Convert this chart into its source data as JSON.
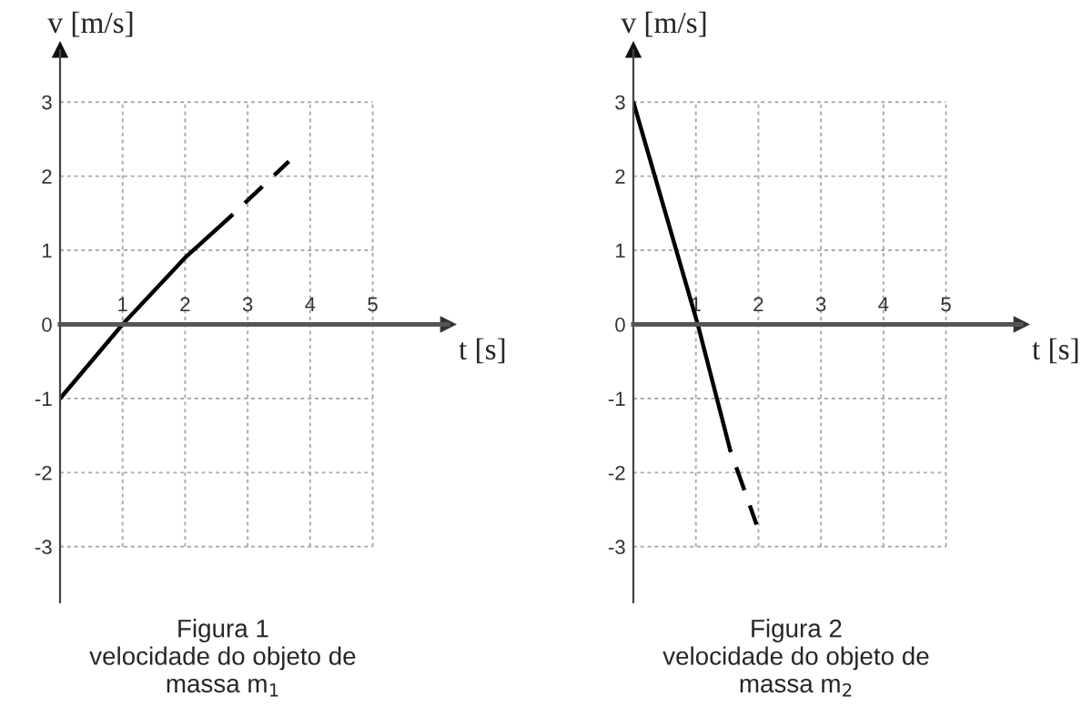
{
  "chart_data": [
    {
      "type": "line",
      "xlabel": "t [s]",
      "ylabel": "v [m/s]",
      "series": [
        {
          "color": "#000000",
          "line_style": "solid",
          "x": [
            0,
            1,
            2,
            2.72
          ],
          "values": [
            -1,
            0,
            0.9,
            1.45
          ]
        },
        {
          "color": "#000000",
          "line_style": "dashed",
          "x": [
            2.72,
            3.66
          ],
          "values": [
            1.45,
            2.2
          ]
        }
      ],
      "xlim": [
        0,
        6.2
      ],
      "ylim": [
        -3.75,
        3.7
      ],
      "xticks": [
        1,
        2,
        3,
        4,
        5
      ],
      "yticks": [
        -3,
        -2,
        -1,
        0,
        1,
        2,
        3
      ],
      "grid": true,
      "annotations": [
        "Figura 1",
        "velocidade do objeto de",
        "massa m$_{1}$"
      ]
    },
    {
      "type": "line",
      "xlabel": "t [s]",
      "ylabel": "v [m/s]",
      "series": [
        {
          "color": "#000000",
          "line_style": "solid",
          "x": [
            0,
            1.03,
            1.55
          ],
          "values": [
            3,
            0,
            -1.7
          ]
        },
        {
          "color": "#000000",
          "line_style": "dashed",
          "x": [
            1.55,
            1.97
          ],
          "values": [
            -1.7,
            -2.7
          ]
        }
      ],
      "xlim": [
        0,
        6.2
      ],
      "ylim": [
        -3.75,
        3.7
      ],
      "xticks": [
        1,
        2,
        3,
        4,
        5
      ],
      "yticks": [
        -3,
        -2,
        -1,
        0,
        1,
        2,
        3
      ],
      "grid": true,
      "annotations": [
        "Figura 2",
        "velocidade do objeto de",
        "massa m$_{2}$"
      ]
    }
  ]
}
